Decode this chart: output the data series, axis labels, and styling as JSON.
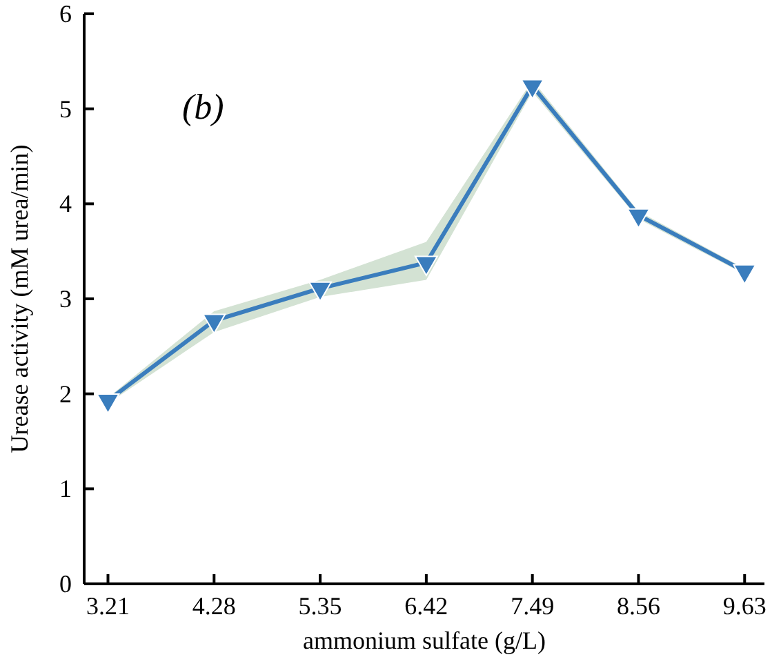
{
  "chart_data": {
    "type": "line",
    "xlabel": "ammonium sulfate (g/L)",
    "ylabel": "Urease activity (mM urea/min)",
    "annotations": [
      "(b)"
    ],
    "x": [
      3.21,
      4.28,
      5.35,
      6.42,
      7.49,
      8.56,
      9.63
    ],
    "series": [
      {
        "color": "#3a7dbd",
        "values": [
          1.93,
          2.77,
          3.11,
          3.38,
          5.24,
          3.88,
          3.29
        ],
        "lower": [
          1.9,
          2.65,
          3.02,
          3.2,
          5.18,
          3.84,
          3.26
        ],
        "upper": [
          1.96,
          2.87,
          3.2,
          3.6,
          5.3,
          3.92,
          3.32
        ]
      }
    ],
    "xlim": [
      2.97,
      9.83
    ],
    "xticks": [
      3.21,
      4.28,
      5.35,
      6.42,
      7.49,
      8.56,
      9.63
    ],
    "ylim": [
      0,
      6
    ],
    "yticks": [
      0,
      1,
      2,
      3,
      4,
      5,
      6
    ],
    "marker": "triangle",
    "line_style": "solid",
    "grid": false
  }
}
